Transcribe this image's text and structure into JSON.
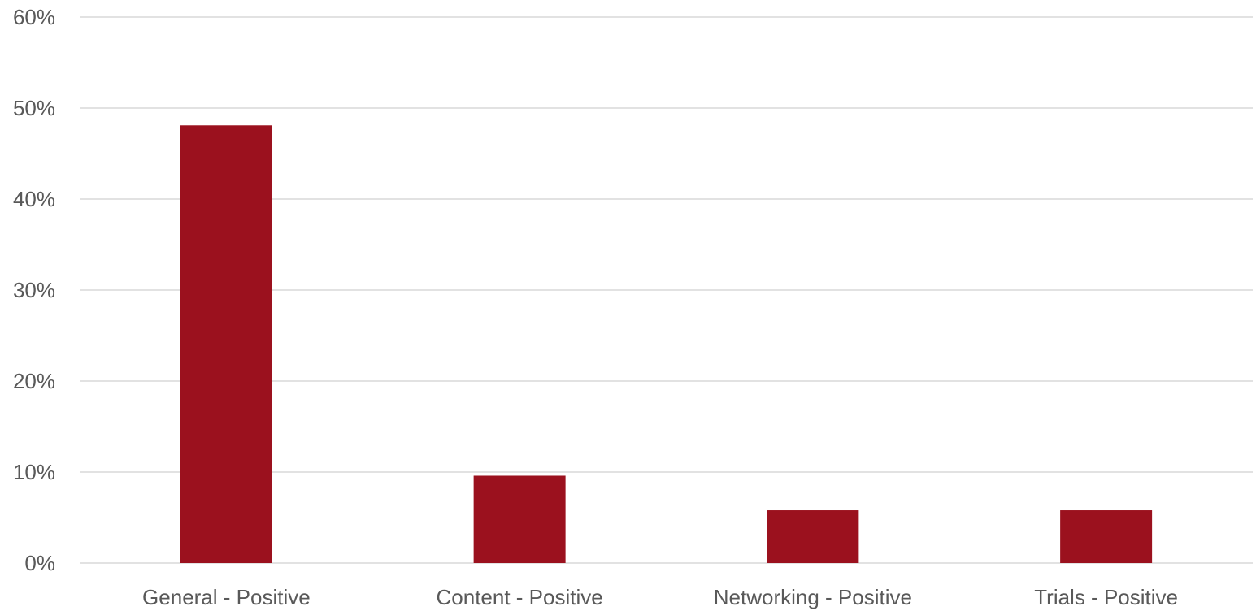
{
  "chart_data": {
    "type": "bar",
    "title": "",
    "xlabel": "",
    "ylabel": "",
    "categories": [
      "General - Positive",
      "Content - Positive",
      "Networking - Positive",
      "Trials - Positive"
    ],
    "values": [
      48.1,
      9.6,
      5.8,
      5.8
    ],
    "value_unit": "%",
    "ylim": [
      0,
      60
    ],
    "yticks": [
      0,
      10,
      20,
      30,
      40,
      50,
      60
    ],
    "ytick_labels": [
      "0%",
      "10%",
      "20%",
      "30%",
      "40%",
      "50%",
      "60%"
    ],
    "grid": true,
    "legend": "none",
    "bar_color": "#9b111e",
    "grid_color": "#d9d9d9",
    "text_color": "#595959"
  }
}
